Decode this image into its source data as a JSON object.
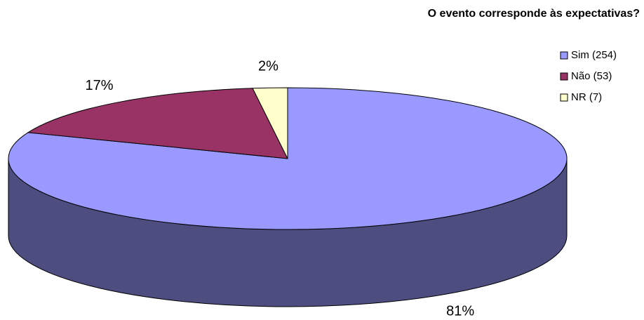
{
  "chart_data": {
    "type": "pie",
    "title": "O evento corresponde às expectativas?",
    "categories": [
      "Sim (254)",
      "Não (53)",
      "NR (7)"
    ],
    "values": [
      81,
      17,
      2
    ],
    "value_labels": [
      "81%",
      "17%",
      "2%"
    ],
    "colors": [
      "#9999ff",
      "#993366",
      "#ffffcc"
    ],
    "legend": "right"
  }
}
